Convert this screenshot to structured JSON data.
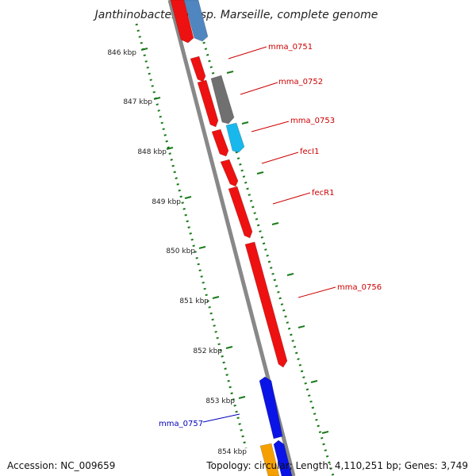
{
  "title": "Janthinobacterium sp. Marseille, complete genome",
  "footer": {
    "accession": "Accession: NC_009659",
    "summary": "Topology: circular; Length: 4,110,251 bp; Genes: 3,749"
  },
  "chart_data": {
    "type": "genome-map",
    "ticks": [
      "846 kbp",
      "847 kbp",
      "848 kbp",
      "849 kbp",
      "850 kbp",
      "851 kbp",
      "852 kbp",
      "853 kbp",
      "854 kbp"
    ],
    "genes": [
      {
        "id": "g-top-red",
        "color": "#ee1111"
      },
      {
        "id": "g-top-blue",
        "color": "#4f86c0"
      },
      {
        "id": "g-0751",
        "color": "#ee1111",
        "label": "mma_0751",
        "label_color": "#cc0000"
      },
      {
        "id": "g-0752",
        "color": "#ee1111",
        "label": "mma_0752",
        "label_color": "#cc0000"
      },
      {
        "id": "g-gray",
        "color": "#707070"
      },
      {
        "id": "g-0753",
        "color": "#ee1111",
        "label": "mma_0753",
        "label_color": "#cc0000"
      },
      {
        "id": "g-cyan",
        "color": "#19b8ec"
      },
      {
        "id": "g-fecI",
        "color": "#ee1111",
        "label": "fecI1",
        "label_color": "#cc0000"
      },
      {
        "id": "g-fecR",
        "color": "#ee1111",
        "label": "fecR1",
        "label_color": "#cc0000"
      },
      {
        "id": "g-0756",
        "color": "#ee1111",
        "label": "mma_0756",
        "label_color": "#cc0000"
      },
      {
        "id": "g-0757",
        "color": "#0a14e6",
        "label": "mma_0757",
        "label_color": "#0000bb"
      },
      {
        "id": "g-blue2",
        "color": "#0a14e6"
      },
      {
        "id": "g-orange",
        "color": "#f5a000"
      }
    ],
    "tick_color": "#1a7a1a",
    "backbone_color": "#888888"
  }
}
